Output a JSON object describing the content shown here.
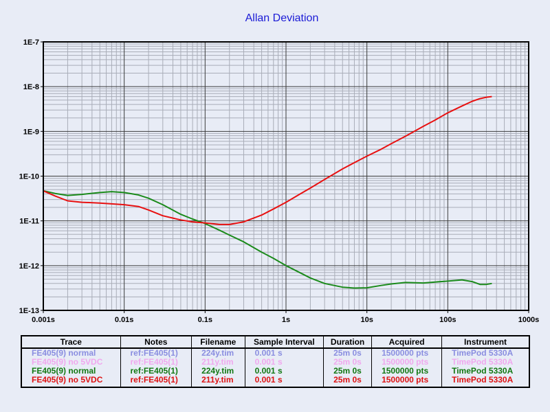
{
  "chart_data": {
    "type": "line",
    "title": "Allan Deviation",
    "xlabel": "",
    "ylabel": "",
    "xscale": "log",
    "yscale": "log",
    "xlim": [
      0.001,
      1000
    ],
    "ylim": [
      1e-13,
      1e-07
    ],
    "x_tick_labels": [
      "0.001s",
      "0.01s",
      "0.1s",
      "1s",
      "10s",
      "100s",
      "1000s"
    ],
    "y_tick_labels": [
      "1E-7",
      "1E-8",
      "1E-9",
      "1E-10",
      "1E-11",
      "1E-12",
      "1E-13"
    ],
    "grid": true,
    "series": [
      {
        "name": "FE405(9) normal",
        "color": "#1a8a1a",
        "x": [
          0.001,
          0.0014,
          0.002,
          0.003,
          0.005,
          0.007,
          0.01,
          0.015,
          0.02,
          0.03,
          0.05,
          0.07,
          0.1,
          0.15,
          0.2,
          0.3,
          0.5,
          0.7,
          1,
          1.5,
          2,
          3,
          5,
          7,
          10,
          15,
          20,
          30,
          50,
          70,
          100,
          150,
          200,
          250,
          300,
          350
        ],
        "y": [
          4.7e-11,
          4.1e-11,
          3.7e-11,
          3.9e-11,
          4.3e-11,
          4.5e-11,
          4.3e-11,
          3.8e-11,
          3.2e-11,
          2.3e-11,
          1.4e-11,
          1.1e-11,
          8.7e-12,
          6.2e-12,
          4.8e-12,
          3.4e-12,
          2e-12,
          1.45e-12,
          1e-12,
          6.9e-13,
          5.3e-13,
          4e-13,
          3.3e-13,
          3.15e-13,
          3.2e-13,
          3.6e-13,
          3.9e-13,
          4.2e-13,
          4.1e-13,
          4.3e-13,
          4.5e-13,
          4.8e-13,
          4.4e-13,
          3.8e-13,
          3.8e-13,
          4e-13
        ]
      },
      {
        "name": "FE405(9) no 5VDC",
        "color": "#e81010",
        "x": [
          0.001,
          0.0014,
          0.002,
          0.003,
          0.005,
          0.007,
          0.01,
          0.015,
          0.02,
          0.03,
          0.05,
          0.07,
          0.1,
          0.15,
          0.2,
          0.3,
          0.5,
          0.7,
          1,
          1.5,
          2,
          3,
          5,
          7,
          10,
          15,
          20,
          30,
          50,
          70,
          100,
          150,
          200,
          250,
          300,
          350
        ],
        "y": [
          4.7e-11,
          3.6e-11,
          2.8e-11,
          2.6e-11,
          2.5e-11,
          2.4e-11,
          2.3e-11,
          2.1e-11,
          1.75e-11,
          1.3e-11,
          1.05e-11,
          9.5e-12,
          9e-12,
          8.3e-12,
          8.3e-12,
          9.5e-12,
          1.35e-11,
          1.85e-11,
          2.6e-11,
          4e-11,
          5.4e-11,
          8.4e-11,
          1.45e-10,
          2e-10,
          2.8e-10,
          4e-10,
          5.3e-10,
          7.8e-10,
          1.3e-09,
          1.8e-09,
          2.6e-09,
          3.7e-09,
          4.7e-09,
          5.4e-09,
          5.8e-09,
          6e-09
        ]
      }
    ]
  },
  "legend_table": {
    "headers": [
      "Trace",
      "Notes",
      "Filename",
      "Sample Interval",
      "Duration",
      "Acquired",
      "Instrument"
    ],
    "rows": [
      {
        "color": "#8a8ee0",
        "cells": [
          "FE405(9) normal",
          "ref:FE405(1)",
          "224y.tim",
          "0.001 s",
          "25m 0s",
          "1500000 pts",
          "TimePod 5330A"
        ]
      },
      {
        "color": "#f0a8ee",
        "cells": [
          "FE405(9) no 5VDC",
          "ref:FE405(1)",
          "211y.tim",
          "0.001 s",
          "25m 0s",
          "1500000 pts",
          "TimePod 5330A"
        ]
      },
      {
        "color": "#117711",
        "cells": [
          "FE405(9) normal",
          "ref:FE405(1)",
          "224y.tim",
          "0.001 s",
          "25m 0s",
          "1500000 pts",
          "TimePod 5330A"
        ]
      },
      {
        "color": "#dd1111",
        "cells": [
          "FE405(9) no 5VDC",
          "ref:FE405(1)",
          "211y.tim",
          "0.001 s",
          "25m 0s",
          "1500000 pts",
          "TimePod 5330A"
        ]
      }
    ]
  }
}
